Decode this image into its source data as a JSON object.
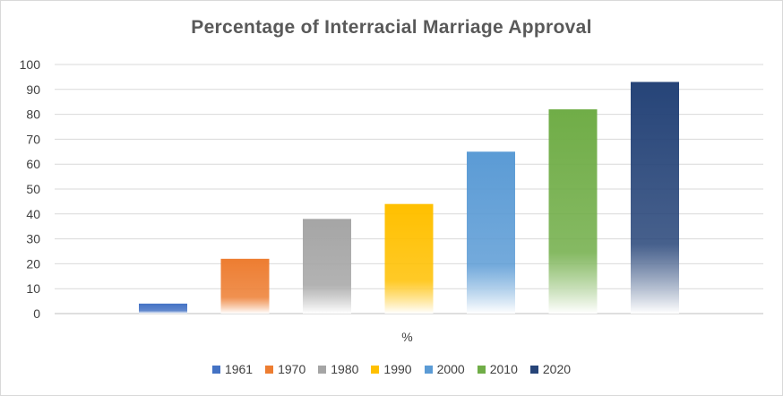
{
  "chart_data": {
    "type": "bar",
    "title": "Percentage of Interracial Marriage Approval",
    "xlabel": "%",
    "ylabel": "",
    "ylim": [
      0,
      100
    ],
    "yticks": [
      0,
      10,
      20,
      30,
      40,
      50,
      60,
      70,
      80,
      90,
      100
    ],
    "grid": true,
    "legend_position": "bottom",
    "series": [
      {
        "name": "1961",
        "value": 4,
        "color": "#4472c4"
      },
      {
        "name": "1970",
        "value": 22,
        "color": "#ed7d31"
      },
      {
        "name": "1980",
        "value": 38,
        "color": "#a5a5a5"
      },
      {
        "name": "1990",
        "value": 44,
        "color": "#ffc000"
      },
      {
        "name": "2000",
        "value": 65,
        "color": "#5b9bd5"
      },
      {
        "name": "2010",
        "value": 82,
        "color": "#70ad47"
      },
      {
        "name": "2020",
        "value": 93,
        "color": "#264478"
      }
    ]
  }
}
